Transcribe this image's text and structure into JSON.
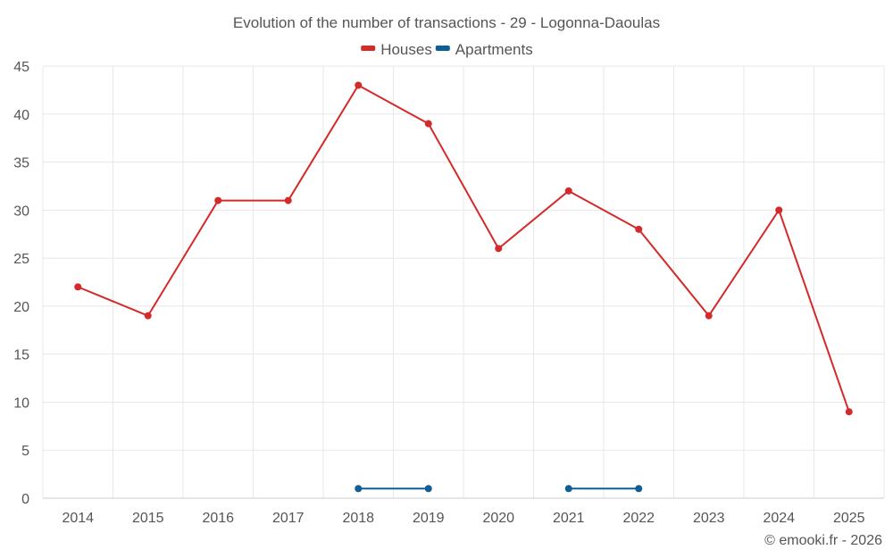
{
  "chart_data": {
    "type": "line",
    "title": "Evolution of the number of transactions - 29 - Logonna-Daoulas",
    "xlabel": "",
    "ylabel": "",
    "categories": [
      "2014",
      "2015",
      "2016",
      "2017",
      "2018",
      "2019",
      "2020",
      "2021",
      "2022",
      "2023",
      "2024",
      "2025"
    ],
    "ylim": [
      0,
      45
    ],
    "yticks": [
      0,
      5,
      10,
      15,
      20,
      25,
      30,
      35,
      40,
      45
    ],
    "grid": true,
    "legend_position": "top-center",
    "series": [
      {
        "name": "Houses",
        "color": "#d32a2a",
        "values": [
          22,
          19,
          31,
          31,
          43,
          39,
          26,
          32,
          28,
          19,
          30,
          9
        ]
      },
      {
        "name": "Apartments",
        "color": "#0f5e96",
        "values": [
          null,
          null,
          null,
          null,
          1,
          1,
          null,
          1,
          1,
          null,
          null,
          null
        ]
      }
    ]
  },
  "credit": "© emooki.fr - 2026"
}
